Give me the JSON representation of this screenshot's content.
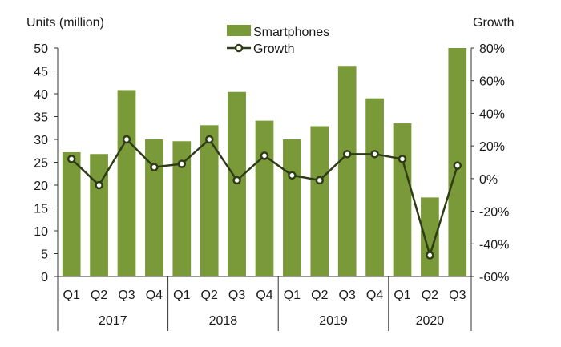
{
  "chart_data": {
    "type": "bar",
    "left_axis_title": "Units (million)",
    "right_axis_title": "Growth",
    "categories": [
      "Q1",
      "Q2",
      "Q3",
      "Q4",
      "Q1",
      "Q2",
      "Q3",
      "Q4",
      "Q1",
      "Q2",
      "Q3",
      "Q4",
      "Q1",
      "Q2",
      "Q3"
    ],
    "years": [
      {
        "label": "2017",
        "start": 0,
        "end": 3
      },
      {
        "label": "2018",
        "start": 4,
        "end": 7
      },
      {
        "label": "2019",
        "start": 8,
        "end": 11
      },
      {
        "label": "2020",
        "start": 12,
        "end": 14
      }
    ],
    "series": [
      {
        "name": "Smartphones",
        "type": "bar",
        "axis": "left",
        "color": "#7a9a3a",
        "values": [
          27.2,
          26.8,
          40.8,
          30.0,
          29.6,
          33.1,
          40.4,
          34.1,
          30.0,
          32.9,
          46.1,
          39.0,
          33.5,
          17.3,
          50.0
        ]
      },
      {
        "name": "Growth",
        "type": "line",
        "axis": "right",
        "color": "#2e3d17",
        "values": [
          12,
          -4,
          24,
          7,
          9,
          24,
          -1,
          14,
          2,
          -1,
          15,
          15,
          12,
          -47,
          8
        ]
      }
    ],
    "ylim_left": [
      0,
      50
    ],
    "yticks_left": [
      "0",
      "5",
      "10",
      "15",
      "20",
      "25",
      "30",
      "35",
      "40",
      "45",
      "50"
    ],
    "ylim_right": [
      -60,
      80
    ],
    "yticks_right": [
      "-60%",
      "-40%",
      "-20%",
      "0%",
      "20%",
      "40%",
      "60%",
      "80%"
    ],
    "legend": [
      "Smartphones",
      "Growth"
    ]
  }
}
